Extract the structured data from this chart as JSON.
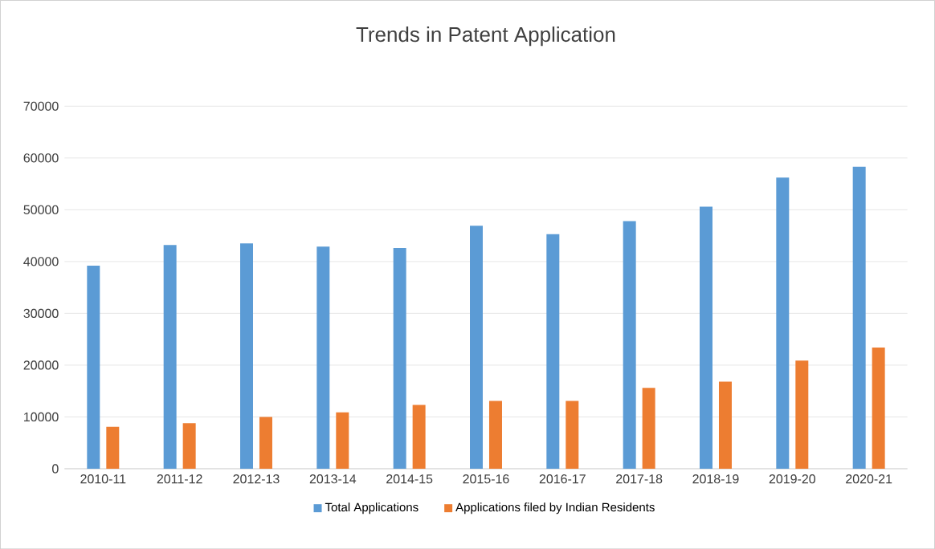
{
  "chart_data": {
    "type": "bar",
    "title": "Trends in Patent Application",
    "categories": [
      "2010-11",
      "2011-12",
      "2012-13",
      "2013-14",
      "2014-15",
      "2015-16",
      "2016-17",
      "2017-18",
      "2018-19",
      "2019-20",
      "2020-21"
    ],
    "series": [
      {
        "name": "Total Applications",
        "color": "#5b9bd5",
        "values": [
          39200,
          43200,
          43500,
          42900,
          42600,
          46900,
          45300,
          47800,
          50600,
          56200,
          58300
        ]
      },
      {
        "name": "Applications filed by Indian Residents",
        "color": "#ed7d31",
        "values": [
          8100,
          8800,
          10000,
          10900,
          12300,
          13100,
          13100,
          15600,
          16800,
          20900,
          23400
        ]
      }
    ],
    "ylim": [
      0,
      70000
    ],
    "yticks": [
      0,
      10000,
      20000,
      30000,
      40000,
      50000,
      60000,
      70000
    ],
    "grid": "y",
    "legend": "bottom"
  }
}
